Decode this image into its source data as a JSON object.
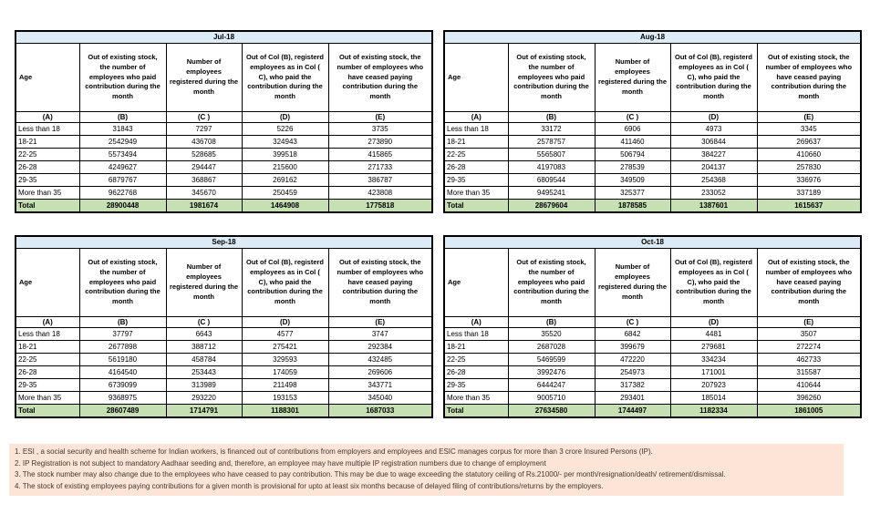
{
  "months": [
    {
      "title": "Jul-18",
      "headers": {
        "age": "Age",
        "b": "Out of existing stock, the number of employees who paid contribution during the month",
        "c": "Number of employees registered during the month",
        "d": "Out of Col (B), registerd employees as in Col ( C), who paid the contribution during the month",
        "e": "Out of existing stock, the number of employees who have ceased paying contribution during the month"
      },
      "letters": {
        "a": "(A)",
        "b": "(B)",
        "c": "(C )",
        "d": "(D)",
        "e": "(E)"
      },
      "rows": [
        {
          "age": "Less than 18",
          "b": "31843",
          "c": "7297",
          "d": "5226",
          "e": "3735"
        },
        {
          "age": "18-21",
          "b": "2542949",
          "c": "436708",
          "d": "324943",
          "e": "273890"
        },
        {
          "age": "22-25",
          "b": "5573494",
          "c": "528685",
          "d": "399518",
          "e": "415865"
        },
        {
          "age": "26-28",
          "b": "4249627",
          "c": "294447",
          "d": "215600",
          "e": "271733"
        },
        {
          "age": "29-35",
          "b": "6879767",
          "c": "368867",
          "d": "269162",
          "e": "386787"
        },
        {
          "age": "More than 35",
          "b": "9622768",
          "c": "345670",
          "d": "250459",
          "e": "423808"
        }
      ],
      "total_label": "Total",
      "total": {
        "b": "28900448",
        "c": "1981674",
        "d": "1464908",
        "e": "1775818"
      }
    },
    {
      "title": "Aug-18",
      "headers": {
        "age": "Age",
        "b": "Out of existing stock, the number of employees who paid contribution during the month",
        "c": "Number of employees registered during the month",
        "d": "Out of Col (B), registerd employees as in Col ( C), who paid the contribution during the month",
        "e": "Out of existing stock, the number of employees who have ceased paying contribution during the month"
      },
      "letters": {
        "a": "(A)",
        "b": "(B)",
        "c": "(C )",
        "d": "(D)",
        "e": "(E)"
      },
      "rows": [
        {
          "age": "Less than 18",
          "b": "33172",
          "c": "6906",
          "d": "4973",
          "e": "3345"
        },
        {
          "age": "18-21",
          "b": "2578757",
          "c": "411460",
          "d": "306844",
          "e": "269637"
        },
        {
          "age": "22-25",
          "b": "5565807",
          "c": "506794",
          "d": "384227",
          "e": "410660"
        },
        {
          "age": "26-28",
          "b": "4197083",
          "c": "278539",
          "d": "204137",
          "e": "257830"
        },
        {
          "age": "29-35",
          "b": "6809544",
          "c": "349509",
          "d": "254368",
          "e": "336976"
        },
        {
          "age": "More than 35",
          "b": "9495241",
          "c": "325377",
          "d": "233052",
          "e": "337189"
        }
      ],
      "total_label": "Total",
      "total": {
        "b": "28679604",
        "c": "1878585",
        "d": "1387601",
        "e": "1615637"
      }
    },
    {
      "title": "Sep-18",
      "headers": {
        "age": "Age",
        "b": "Out of existing stock, the number of employees who paid contribution during the month",
        "c": "Number of employees registered during the month",
        "d": "Out of Col (B), registerd employees as in Col ( C), who paid the contribution during the month",
        "e": "Out of existing stock, the number of employees who have ceased paying contribution during the month"
      },
      "letters": {
        "a": "(A)",
        "b": "(B)",
        "c": "(C )",
        "d": "(D)",
        "e": "(E)"
      },
      "rows": [
        {
          "age": "Less than 18",
          "b": "37797",
          "c": "6643",
          "d": "4577",
          "e": "3747"
        },
        {
          "age": "18-21",
          "b": "2677898",
          "c": "388712",
          "d": "275421",
          "e": "292384"
        },
        {
          "age": "22-25",
          "b": "5619180",
          "c": "458784",
          "d": "329593",
          "e": "432485"
        },
        {
          "age": "26-28",
          "b": "4164540",
          "c": "253443",
          "d": "174059",
          "e": "269606"
        },
        {
          "age": "29-35",
          "b": "6739099",
          "c": "313989",
          "d": "211498",
          "e": "343771"
        },
        {
          "age": "More than 35",
          "b": "9368975",
          "c": "293220",
          "d": "193153",
          "e": "345040"
        }
      ],
      "total_label": "Total",
      "total": {
        "b": "28607489",
        "c": "1714791",
        "d": "1188301",
        "e": "1687033"
      }
    },
    {
      "title": "Oct-18",
      "headers": {
        "age": "Age",
        "b": "Out of existing stock, the number of employees who paid contribution during the month",
        "c": "Number of employees registered during the month",
        "d": "Out of Col (B), registerd employees as in Col ( C), who paid the contribution during the month",
        "e": "Out of existing stock, the number of employees who have ceased paying contribution during the month"
      },
      "letters": {
        "a": "(A)",
        "b": "(B)",
        "c": "(C )",
        "d": "(D)",
        "e": "(E)"
      },
      "rows": [
        {
          "age": "Less than 18",
          "b": "35520",
          "c": "6842",
          "d": "4481",
          "e": "3507"
        },
        {
          "age": "18-21",
          "b": "2687028",
          "c": "399679",
          "d": "279681",
          "e": "272274"
        },
        {
          "age": "22-25",
          "b": "5469599",
          "c": "472220",
          "d": "334234",
          "e": "462733"
        },
        {
          "age": "26-28",
          "b": "3992476",
          "c": "254973",
          "d": "171001",
          "e": "315587"
        },
        {
          "age": "29-35",
          "b": "6444247",
          "c": "317382",
          "d": "207923",
          "e": "410644"
        },
        {
          "age": "More than 35",
          "b": "9005710",
          "c": "293401",
          "d": "185014",
          "e": "396260"
        }
      ],
      "total_label": "Total",
      "total": {
        "b": "27634580",
        "c": "1744497",
        "d": "1182334",
        "e": "1861005"
      }
    }
  ],
  "footnotes": [
    "1. ESI , a social security and health scheme for Indian workers, is financed out of contributions from employers and employees and ESIC manages corpus for more than 3 crore Insured Persons (IP).",
    "2. IP Registration is not subject to mandatory Aadhaar seeding and, therefore, an employee may have multiple IP registration numbers due to change of employment",
    "3. The stock number may also change due to the employees who have ceased to pay contribution. This may be due to wage exceeding the statutory ceiling of Rs.21000/- per month/resignation/death/ retirement/dismissal.",
    "4. The stock of existing employees paying contributions for a given month is provisional for upto at least six months because of delayed filing of contributions/returns by the employers."
  ],
  "colors": {
    "month_banner": "#DDEBF7",
    "total_row": "#C6E0B4",
    "footnote_background": "#FCE4D6",
    "table_border": "#000000"
  }
}
